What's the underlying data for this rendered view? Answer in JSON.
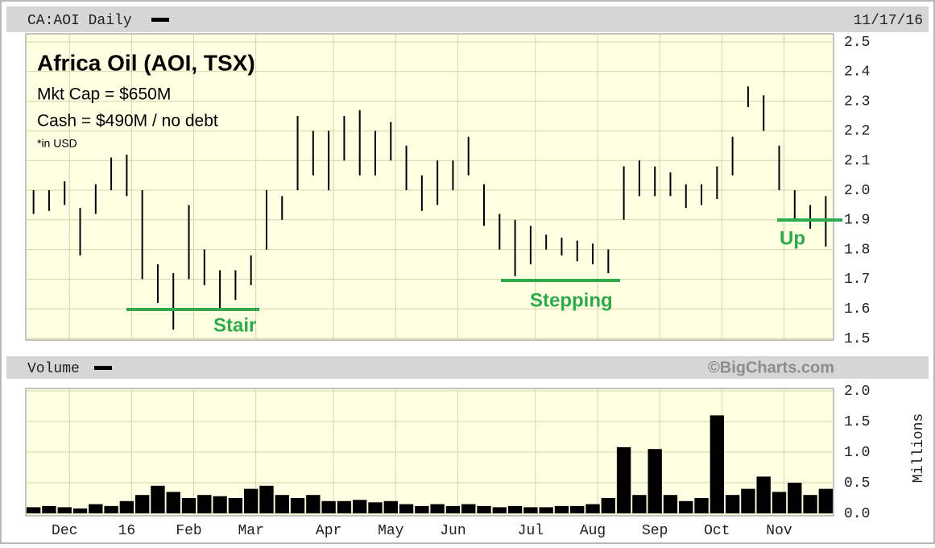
{
  "chart_data": [
    {
      "type": "range",
      "title": "CA:AOI Daily",
      "subtitle": "11/17/16",
      "text_box": {
        "title": "Africa Oil (AOI, TSX)",
        "lines": [
          "Mkt Cap = $650M",
          "Cash = $490M / no debt"
        ],
        "note": "*in USD"
      },
      "level_labels": [
        "Stair",
        "Stepping",
        "Up"
      ],
      "color": "#000000",
      "grid": true,
      "ylim": [
        1.5,
        2.5
      ],
      "yticks": [
        1.5,
        1.6,
        1.7,
        1.8,
        1.9,
        {
          "value": 2,
          "label": "2.0"
        },
        2.1,
        2.2,
        2.3,
        2.4,
        2.5
      ],
      "series": [
        {
          "name": "High",
          "values": [
            2.0,
            2.0,
            2.03,
            1.94,
            2.02,
            2.11,
            2.12,
            2.0,
            1.75,
            1.72,
            1.95,
            1.8,
            1.73,
            1.73,
            1.78,
            2.0,
            1.98,
            2.25,
            2.2,
            2.2,
            2.25,
            2.27,
            2.2,
            2.23,
            2.15,
            2.05,
            2.1,
            2.1,
            2.18,
            2.02,
            1.92,
            1.9,
            1.88,
            1.85,
            1.84,
            1.83,
            1.82,
            1.8,
            2.08,
            2.1,
            2.08,
            2.06,
            2.02,
            2.02,
            2.08,
            2.18,
            2.35,
            2.32,
            2.15,
            2.0,
            1.95,
            1.98
          ]
        },
        {
          "name": "Low",
          "values": [
            1.92,
            1.93,
            1.95,
            1.78,
            1.92,
            2.0,
            1.98,
            1.7,
            1.62,
            1.53,
            1.7,
            1.68,
            1.6,
            1.63,
            1.68,
            1.8,
            1.9,
            2.0,
            2.05,
            2.0,
            2.1,
            2.05,
            2.05,
            2.1,
            2.0,
            1.93,
            1.95,
            2.0,
            2.05,
            1.88,
            1.8,
            1.71,
            1.75,
            1.8,
            1.78,
            1.76,
            1.75,
            1.72,
            1.9,
            1.98,
            1.98,
            1.98,
            1.94,
            1.95,
            1.97,
            2.05,
            2.28,
            2.2,
            2.0,
            1.9,
            1.87,
            1.81
          ]
        }
      ]
    },
    {
      "type": "bar",
      "title": "Volume",
      "subtitle": "©BigCharts.com",
      "y_label": "Millions",
      "color": "#000000",
      "grid": true,
      "categories": [
        null,
        null,
        "Dec",
        null,
        null,
        null,
        "16",
        null,
        null,
        null,
        "Feb",
        null,
        null,
        null,
        "Mar",
        null,
        null,
        null,
        null,
        "Apr",
        null,
        null,
        null,
        "May",
        null,
        null,
        null,
        "Jun",
        null,
        null,
        null,
        null,
        "Jul",
        null,
        null,
        null,
        "Aug",
        null,
        null,
        null,
        "Sep",
        null,
        null,
        null,
        "Oct",
        null,
        null,
        null,
        "Nov",
        null,
        null,
        null
      ],
      "ylim": [
        0,
        2
      ],
      "yticks": [
        {
          "value": 0,
          "label": "0.0"
        },
        0.5,
        {
          "value": 1,
          "label": "1.0"
        },
        1.5,
        {
          "value": 2,
          "label": "2.0"
        }
      ],
      "values": [
        0.1,
        0.12,
        0.1,
        0.08,
        0.15,
        0.12,
        0.2,
        0.3,
        0.45,
        0.35,
        0.25,
        0.3,
        0.28,
        0.25,
        0.4,
        0.45,
        0.3,
        0.25,
        0.3,
        0.2,
        0.2,
        0.22,
        0.18,
        0.2,
        0.15,
        0.12,
        0.15,
        0.12,
        0.15,
        0.12,
        0.1,
        0.12,
        0.1,
        0.1,
        0.12,
        0.12,
        0.15,
        0.25,
        1.08,
        0.3,
        1.05,
        0.3,
        0.2,
        0.25,
        1.6,
        0.3,
        0.4,
        0.6,
        0.35,
        0.5,
        0.3,
        0.4
      ]
    }
  ]
}
